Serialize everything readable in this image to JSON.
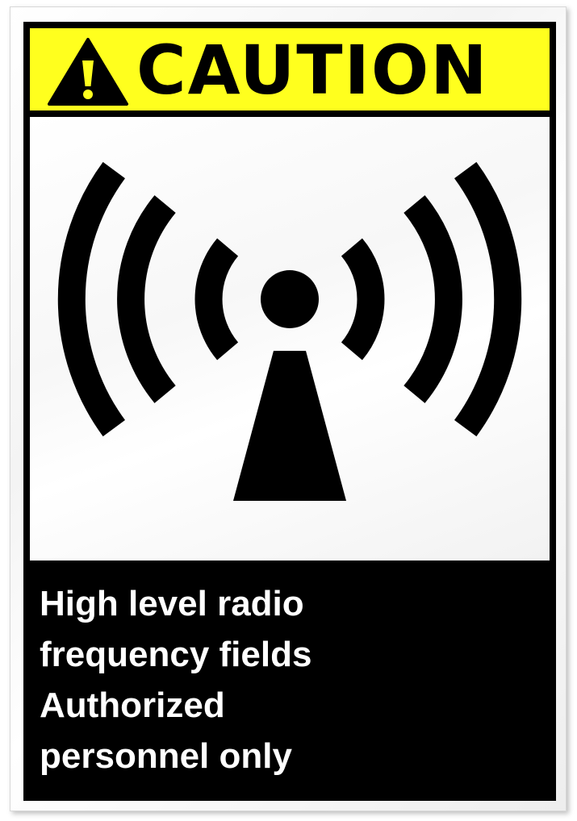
{
  "sign": {
    "header": {
      "word": "CAUTION",
      "icon": "warning-triangle-icon",
      "color": "#ffff1e"
    },
    "symbol": {
      "icon": "radio-frequency-antenna-icon"
    },
    "message": {
      "lines": [
        "High level radio",
        "frequency fields",
        "Authorized",
        "personnel only"
      ]
    },
    "colors": {
      "background": "#000000",
      "text": "#ffffff",
      "symbol": "#000000"
    }
  }
}
